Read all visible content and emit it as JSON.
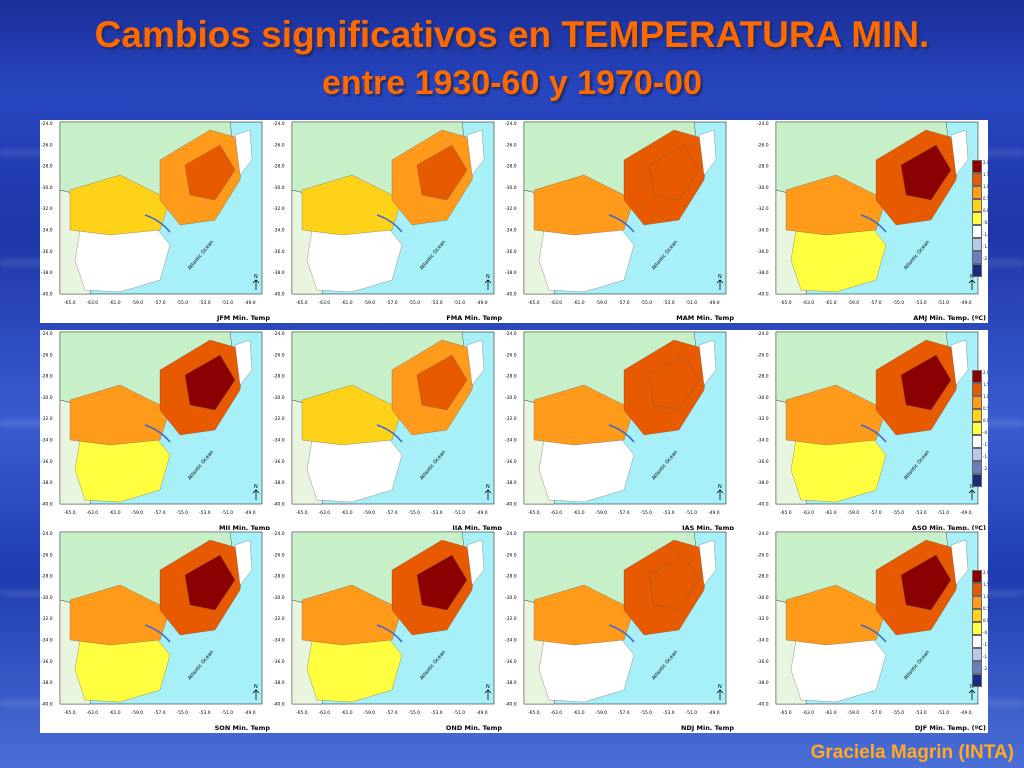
{
  "slide": {
    "title_line1": "Cambios significativos en TEMPERATURA MIN.",
    "title_line2": "entre 1930-60 y 1970-00",
    "credit": "Graciela Magrin (INTA)"
  },
  "map": {
    "y_ticks": [
      "-24.0",
      "-26.0",
      "-28.0",
      "-30.0",
      "-32.0",
      "-34.0",
      "-36.0",
      "-38.0",
      "-40.0"
    ],
    "x_ticks": [
      "-65.0",
      "-63.0",
      "-61.0",
      "-59.0",
      "-57.0",
      "-55.0",
      "-53.0",
      "-51.0",
      "-49.0"
    ],
    "ocean_label": "Atlantic Ocean",
    "north_label": "N"
  },
  "panels": [
    {
      "label": "JFM Min. Temp"
    },
    {
      "label": "FMA Min. Temp"
    },
    {
      "label": "MAM Min. Temp"
    },
    {
      "label": "AMJ Min. Temp. (ºC)"
    },
    {
      "label": "MJJ Min. Temp"
    },
    {
      "label": "JJA Min. Temp"
    },
    {
      "label": "JAS Min. Temp"
    },
    {
      "label": "ASO Min. Temp. (ºC)"
    },
    {
      "label": "SON Min. Temp"
    },
    {
      "label": "OND Min. Temp"
    },
    {
      "label": "NDJ Min. Temp"
    },
    {
      "label": "DJF Min. Temp. (ºC)"
    }
  ],
  "legend": {
    "levels": [
      "2.0",
      "1.5",
      "1.0",
      "0.5",
      "0.0",
      "-0.5",
      "-1.0",
      "-1.5",
      "-2.0"
    ],
    "colors": [
      "#8b0000",
      "#e85a00",
      "#ff9a1a",
      "#ffd21a",
      "#ffff40",
      "#ffffff",
      "#b8c8e8",
      "#6a7fc0",
      "#1a2a80"
    ]
  },
  "colors": {
    "ocean": "#a8f0f8",
    "land_outside": "#c8f0c8",
    "title": "#ff6a00",
    "credit": "#ffaa22"
  }
}
